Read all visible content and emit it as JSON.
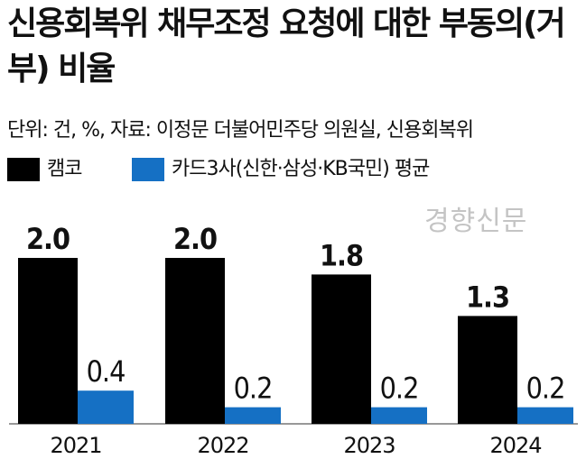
{
  "header": {
    "title": "신용회복위 채무조정 요청에 대한 부동의(거부) 비율",
    "source": "단위: 건, %, 자료: 이정문 더불어민주당 의원실, 신용회복위"
  },
  "watermark": "경향신문",
  "colors": {
    "camco": "#000000",
    "cards": "#1570c4",
    "axis": "#777777"
  },
  "chart_data": {
    "type": "bar",
    "categories": [
      "2021",
      "2022",
      "2023",
      "2024"
    ],
    "series": [
      {
        "name": "캠코",
        "values": [
          2.0,
          2.0,
          1.8,
          1.3
        ],
        "labels": [
          "2.0",
          "2.0",
          "1.8",
          "1.3"
        ]
      },
      {
        "name": "카드3사(신한·삼성·KB국민) 평균",
        "values": [
          0.4,
          0.2,
          0.2,
          0.2
        ],
        "labels": [
          "0.4",
          "0.2",
          "0.2",
          "0.2"
        ]
      }
    ],
    "legend_position": "top-left",
    "grid": false
  }
}
